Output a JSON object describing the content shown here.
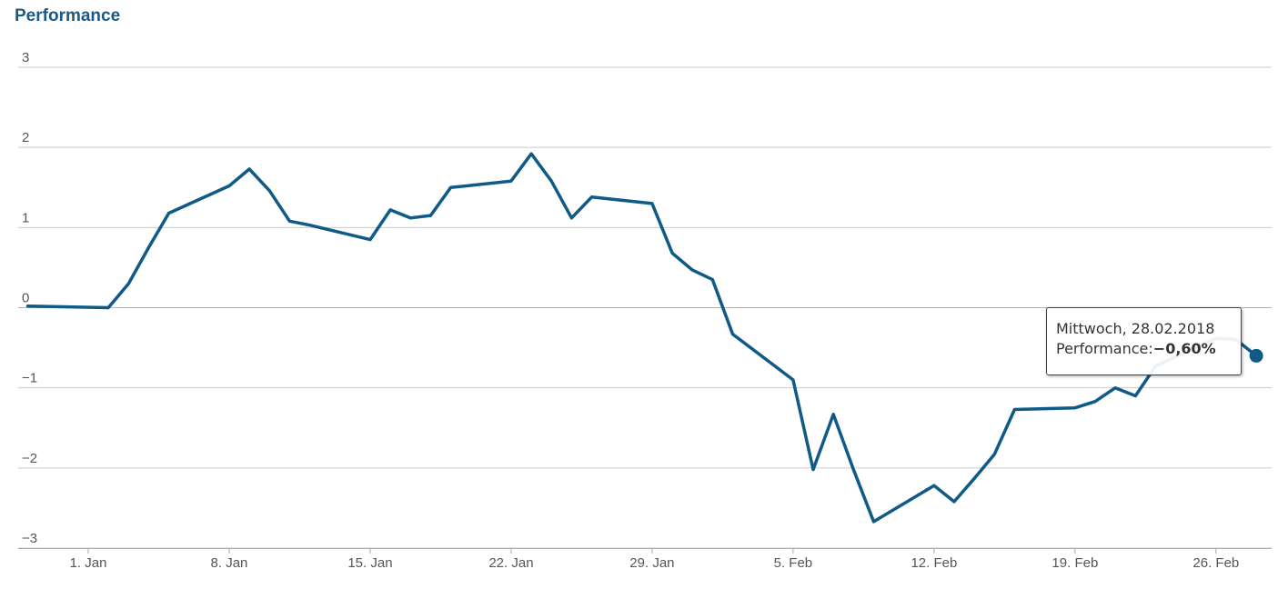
{
  "chart_data": {
    "type": "line",
    "title": "Performance",
    "ylim": [
      -3,
      3
    ],
    "y_ticks": [
      "3",
      "2",
      "1",
      "0",
      "−1",
      "−2",
      "−3"
    ],
    "x_ticks": [
      "1. Jan",
      "8. Jan",
      "15. Jan",
      "22. Jan",
      "29. Jan",
      "5. Feb",
      "12. Feb",
      "19. Feb",
      "26. Feb"
    ],
    "grid": true,
    "series": [
      {
        "color": "#0f5a87",
        "points": [
          [
            "2017-12-29",
            0.02
          ],
          [
            "2018-01-02",
            0.0
          ],
          [
            "2018-01-03",
            0.3
          ],
          [
            "2018-01-04",
            0.75
          ],
          [
            "2018-01-05",
            1.18
          ],
          [
            "2018-01-08",
            1.52
          ],
          [
            "2018-01-09",
            1.73
          ],
          [
            "2018-01-10",
            1.46
          ],
          [
            "2018-01-11",
            1.08
          ],
          [
            "2018-01-12",
            1.03
          ],
          [
            "2018-01-15",
            0.85
          ],
          [
            "2018-01-16",
            1.22
          ],
          [
            "2018-01-17",
            1.12
          ],
          [
            "2018-01-18",
            1.15
          ],
          [
            "2018-01-19",
            1.5
          ],
          [
            "2018-01-22",
            1.58
          ],
          [
            "2018-01-23",
            1.92
          ],
          [
            "2018-01-24",
            1.58
          ],
          [
            "2018-01-25",
            1.12
          ],
          [
            "2018-01-26",
            1.38
          ],
          [
            "2018-01-29",
            1.3
          ],
          [
            "2018-01-30",
            0.68
          ],
          [
            "2018-01-31",
            0.47
          ],
          [
            "2018-02-01",
            0.35
          ],
          [
            "2018-02-02",
            -0.33
          ],
          [
            "2018-02-05",
            -0.9
          ],
          [
            "2018-02-06",
            -2.02
          ],
          [
            "2018-02-07",
            -1.33
          ],
          [
            "2018-02-08",
            -2.02
          ],
          [
            "2018-02-09",
            -2.67
          ],
          [
            "2018-02-12",
            -2.22
          ],
          [
            "2018-02-13",
            -2.42
          ],
          [
            "2018-02-14",
            -2.13
          ],
          [
            "2018-02-15",
            -1.83
          ],
          [
            "2018-02-16",
            -1.27
          ],
          [
            "2018-02-19",
            -1.25
          ],
          [
            "2018-02-20",
            -1.17
          ],
          [
            "2018-02-21",
            -1.0
          ],
          [
            "2018-02-22",
            -1.1
          ],
          [
            "2018-02-23",
            -0.73
          ],
          [
            "2018-02-26",
            -0.38
          ],
          [
            "2018-02-27",
            -0.4
          ],
          [
            "2018-02-28",
            -0.6
          ]
        ]
      }
    ],
    "highlight": {
      "date": "2018-02-28",
      "value": -0.6
    }
  },
  "tooltip": {
    "date_text": "Mittwoch, 28.02.2018",
    "label": "Performance:",
    "value_text": "−0,60%"
  }
}
